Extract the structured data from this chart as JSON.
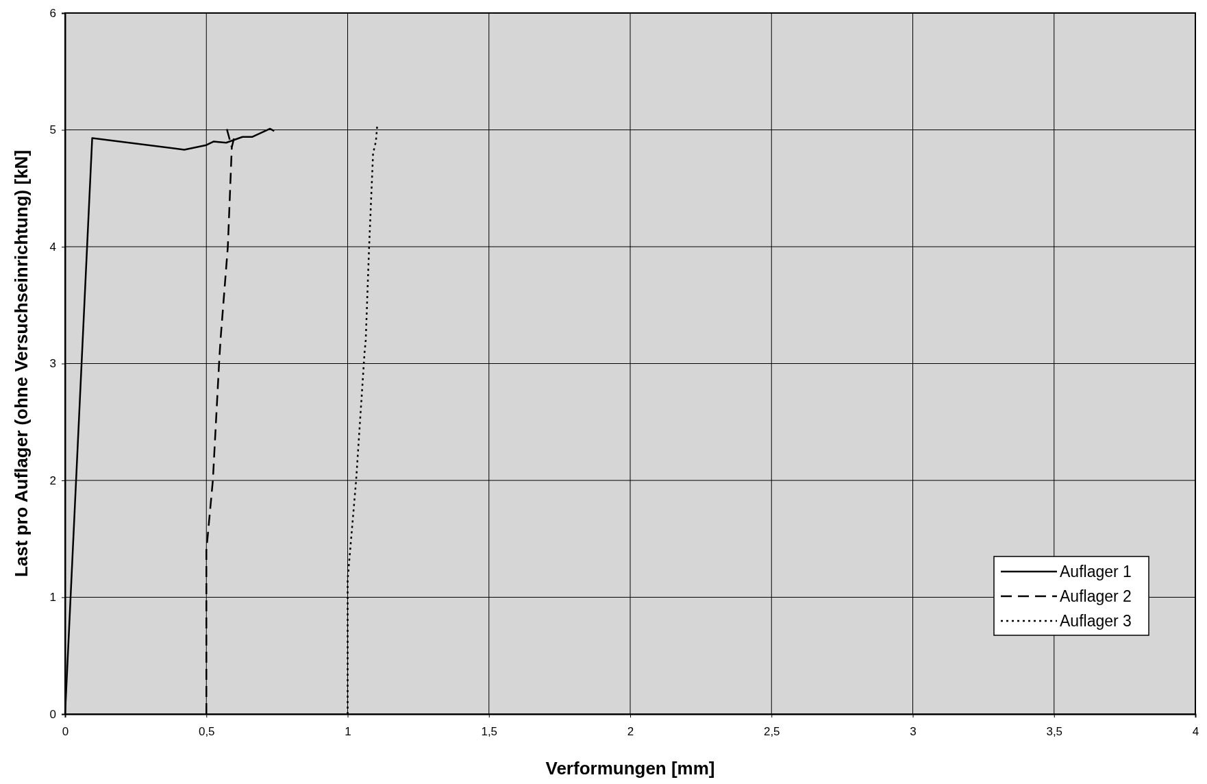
{
  "chart_data": {
    "type": "line",
    "xlabel": "Verformungen [mm]",
    "ylabel": "Last pro Auflager (ohne Versuchseinrichtung) [kN]",
    "xlim": [
      0,
      4
    ],
    "ylim": [
      0,
      6
    ],
    "xticks": [
      0,
      {
        "value": 0.5,
        "label": "0,5"
      },
      1,
      {
        "value": 1.5,
        "label": "1,5"
      },
      2,
      {
        "value": 2.5,
        "label": "2,5"
      },
      3,
      {
        "value": 3.5,
        "label": "3,5"
      },
      4
    ],
    "yticks": [
      0,
      1,
      2,
      3,
      4,
      5,
      6
    ],
    "grid": true,
    "legend": "bottom right",
    "marker": "none",
    "series": [
      {
        "name": "Auflager 1",
        "color": "#000000",
        "line_style": "solid",
        "x": [
          0,
          0.096,
          0.422,
          0.5,
          0.525,
          0.57,
          0.628,
          0.663,
          0.725,
          0.74
        ],
        "values": [
          0,
          4.93,
          4.83,
          4.87,
          4.9,
          4.89,
          4.94,
          4.94,
          5.01,
          4.99
        ]
      },
      {
        "name": "Auflager 2",
        "color": "#000000",
        "line_style": "dashed",
        "x": [
          0.5,
          0.5,
          0.523,
          0.545,
          0.55,
          0.576,
          0.59,
          0.6,
          0.59,
          0.57
        ],
        "values": [
          0,
          1.4,
          2,
          3,
          3.2,
          4,
          4.85,
          4.95,
          4.85,
          5.03
        ]
      },
      {
        "name": "Auflager 3",
        "color": "#000000",
        "line_style": "dotted",
        "x": [
          1,
          1,
          1.03,
          1.06,
          1.064,
          1.076,
          1.09,
          1.1,
          1.105
        ],
        "values": [
          0,
          1.15,
          2,
          3.1,
          3.2,
          4,
          4.8,
          4.9,
          5.05
        ]
      }
    ]
  }
}
